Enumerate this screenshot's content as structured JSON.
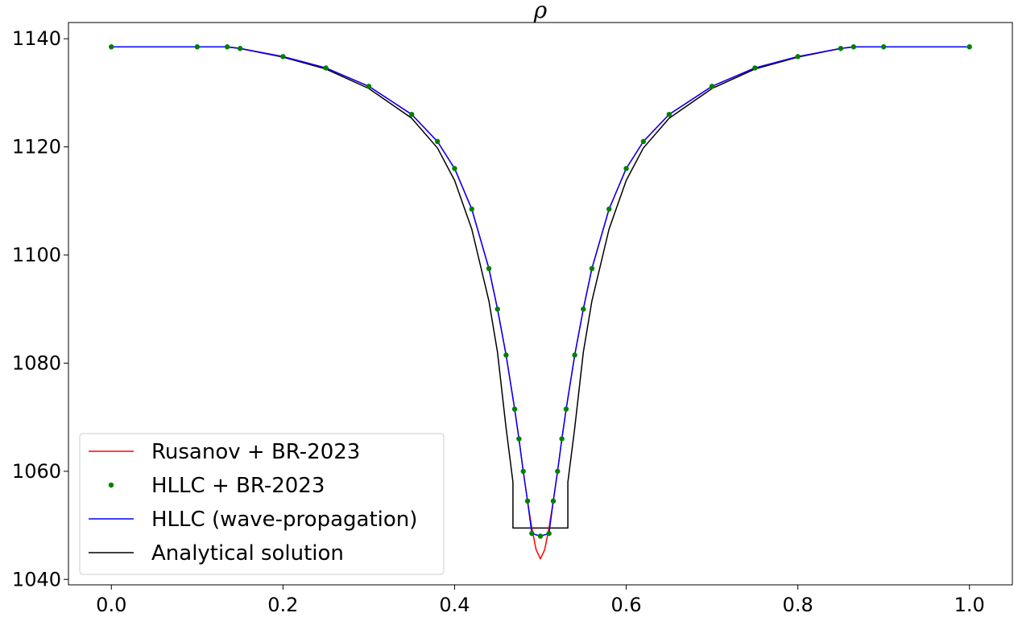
{
  "chart_data": {
    "type": "line",
    "title": "ρ",
    "xlabel": "",
    "ylabel": "",
    "xlim": [
      -0.05,
      1.05
    ],
    "ylim": [
      1039,
      1143
    ],
    "x_ticks": [
      0.0,
      0.2,
      0.4,
      0.6,
      0.8,
      1.0
    ],
    "x_tick_labels": [
      "0.0",
      "0.2",
      "0.4",
      "0.6",
      "0.8",
      "1.0"
    ],
    "y_ticks": [
      1040,
      1060,
      1080,
      1100,
      1120,
      1140
    ],
    "y_tick_labels": [
      "1040",
      "1060",
      "1080",
      "1100",
      "1120",
      "1140"
    ],
    "grid": false,
    "legend_position": "lower-left",
    "series": [
      {
        "name": "Rusanov + BR-2023",
        "style": "line",
        "color": "#ff0000",
        "x": [
          0.0,
          0.1,
          0.135,
          0.15,
          0.2,
          0.25,
          0.3,
          0.35,
          0.38,
          0.4,
          0.42,
          0.44,
          0.45,
          0.46,
          0.47,
          0.475,
          0.48,
          0.485,
          0.49,
          0.495,
          0.5,
          0.505,
          0.51,
          0.515,
          0.52,
          0.525,
          0.53,
          0.54,
          0.55,
          0.56,
          0.58,
          0.6,
          0.62,
          0.65,
          0.7,
          0.75,
          0.8,
          0.85,
          0.865,
          0.9,
          1.0
        ],
        "y": [
          1138.5,
          1138.5,
          1138.5,
          1138.2,
          1136.7,
          1134.6,
          1131.2,
          1126.0,
          1121.0,
          1116.0,
          1108.5,
          1097.5,
          1090.0,
          1081.5,
          1071.5,
          1066.0,
          1060.0,
          1054.5,
          1049.5,
          1045.5,
          1043.8,
          1045.5,
          1049.5,
          1054.5,
          1060.0,
          1066.0,
          1071.5,
          1081.5,
          1090.0,
          1097.5,
          1108.5,
          1116.0,
          1121.0,
          1126.0,
          1131.2,
          1134.6,
          1136.7,
          1138.2,
          1138.5,
          1138.5,
          1138.5
        ]
      },
      {
        "name": "HLLC + BR-2023",
        "style": "markers",
        "color": "#008000",
        "x": [
          0.0,
          0.1,
          0.135,
          0.15,
          0.2,
          0.25,
          0.3,
          0.35,
          0.38,
          0.4,
          0.42,
          0.44,
          0.45,
          0.46,
          0.47,
          0.475,
          0.48,
          0.485,
          0.49,
          0.5,
          0.51,
          0.515,
          0.52,
          0.525,
          0.53,
          0.54,
          0.55,
          0.56,
          0.58,
          0.6,
          0.62,
          0.65,
          0.7,
          0.75,
          0.8,
          0.85,
          0.865,
          0.9,
          1.0
        ],
        "y": [
          1138.5,
          1138.5,
          1138.5,
          1138.2,
          1136.7,
          1134.6,
          1131.2,
          1126.0,
          1121.0,
          1116.0,
          1108.5,
          1097.5,
          1090.0,
          1081.5,
          1071.5,
          1066.0,
          1060.0,
          1054.5,
          1048.5,
          1048.0,
          1048.5,
          1054.5,
          1060.0,
          1066.0,
          1071.5,
          1081.5,
          1090.0,
          1097.5,
          1108.5,
          1116.0,
          1121.0,
          1126.0,
          1131.2,
          1134.6,
          1136.7,
          1138.2,
          1138.5,
          1138.5,
          1138.5
        ]
      },
      {
        "name": "HLLC (wave-propagation)",
        "style": "line",
        "color": "#0000ff",
        "x": [
          0.0,
          0.1,
          0.135,
          0.15,
          0.2,
          0.25,
          0.3,
          0.35,
          0.38,
          0.4,
          0.42,
          0.44,
          0.45,
          0.46,
          0.47,
          0.475,
          0.48,
          0.485,
          0.49,
          0.5,
          0.51,
          0.515,
          0.52,
          0.525,
          0.53,
          0.54,
          0.55,
          0.56,
          0.58,
          0.6,
          0.62,
          0.65,
          0.7,
          0.75,
          0.8,
          0.85,
          0.865,
          0.9,
          1.0
        ],
        "y": [
          1138.5,
          1138.5,
          1138.5,
          1138.2,
          1136.7,
          1134.6,
          1131.2,
          1126.0,
          1121.0,
          1116.0,
          1108.5,
          1097.5,
          1090.0,
          1081.5,
          1071.5,
          1066.0,
          1060.0,
          1054.5,
          1048.5,
          1048.0,
          1048.5,
          1054.5,
          1060.0,
          1066.0,
          1071.5,
          1081.5,
          1090.0,
          1097.5,
          1108.5,
          1116.0,
          1121.0,
          1126.0,
          1131.2,
          1134.6,
          1136.7,
          1138.2,
          1138.5,
          1138.5,
          1138.5
        ]
      },
      {
        "name": "Analytical solution",
        "style": "line",
        "color": "#000000",
        "x": [
          0.0,
          0.1,
          0.135,
          0.15,
          0.2,
          0.25,
          0.3,
          0.35,
          0.38,
          0.4,
          0.42,
          0.44,
          0.45,
          0.46,
          0.468,
          0.468,
          0.532,
          0.532,
          0.54,
          0.55,
          0.56,
          0.58,
          0.6,
          0.62,
          0.65,
          0.7,
          0.75,
          0.8,
          0.85,
          0.865,
          0.9,
          1.0
        ],
        "y": [
          1138.5,
          1138.5,
          1138.5,
          1138.2,
          1136.6,
          1134.4,
          1130.8,
          1125.3,
          1119.8,
          1113.8,
          1104.8,
          1091.5,
          1082.0,
          1068.0,
          1058.0,
          1049.5,
          1049.5,
          1058.0,
          1068.0,
          1082.0,
          1091.5,
          1104.8,
          1113.8,
          1119.8,
          1125.3,
          1130.8,
          1134.4,
          1136.6,
          1138.2,
          1138.5,
          1138.5,
          1138.5
        ]
      }
    ]
  }
}
